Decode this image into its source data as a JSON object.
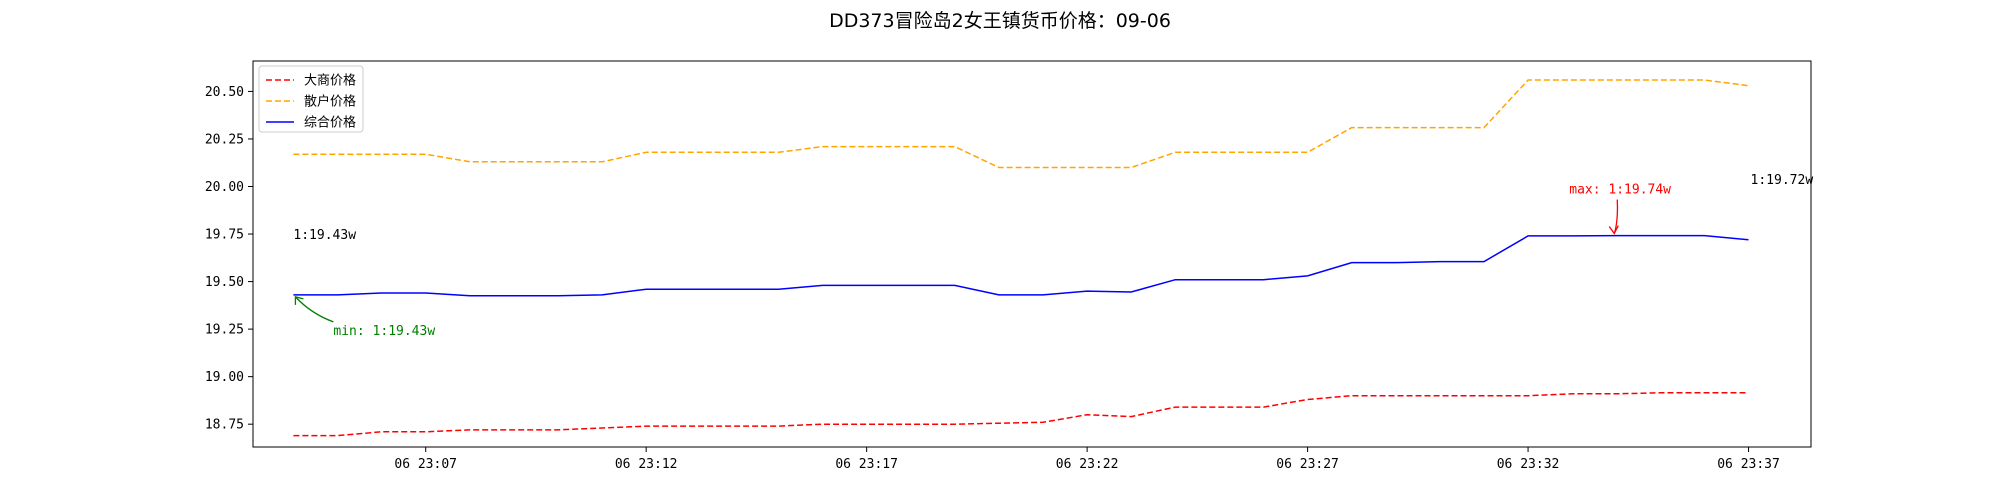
{
  "chart_data": {
    "type": "line",
    "title": "DD373冒险岛2女王镇货币价格：09-06",
    "xlabel": "",
    "ylabel": "",
    "x_ticks": [
      "06 23:07",
      "06 23:12",
      "06 23:17",
      "06 23:22",
      "06 23:27",
      "06 23:32",
      "06 23:37"
    ],
    "y_ticks": [
      "18.75",
      "19.00",
      "19.25",
      "19.50",
      "19.75",
      "20.00",
      "20.25",
      "20.50"
    ],
    "xlim": [
      "23:03:05",
      "23:38:25"
    ],
    "ylim": [
      18.63,
      20.66
    ],
    "grid": false,
    "legend_position": "upper left",
    "x": [
      "23:04",
      "23:05",
      "23:06",
      "23:07",
      "23:08",
      "23:09",
      "23:10",
      "23:11",
      "23:12",
      "23:13",
      "23:14",
      "23:15",
      "23:16",
      "23:17",
      "23:18",
      "23:19",
      "23:20",
      "23:21",
      "23:22",
      "23:23",
      "23:24",
      "23:25",
      "23:26",
      "23:27",
      "23:28",
      "23:29",
      "23:30",
      "23:31",
      "23:32",
      "23:33",
      "23:34",
      "23:35",
      "23:36",
      "23:37"
    ],
    "series": [
      {
        "name": "大商价格",
        "color": "#ff0000",
        "dash": "dashed",
        "values": [
          18.69,
          18.69,
          18.71,
          18.71,
          18.72,
          18.72,
          18.72,
          18.73,
          18.74,
          18.74,
          18.74,
          18.74,
          18.75,
          18.75,
          18.75,
          18.75,
          18.755,
          18.76,
          18.8,
          18.79,
          18.84,
          18.84,
          18.84,
          18.88,
          18.9,
          18.9,
          18.9,
          18.9,
          18.9,
          18.91,
          18.91,
          18.915,
          18.915,
          18.915
        ]
      },
      {
        "name": "散户价格",
        "color": "#ffa500",
        "dash": "dashed",
        "values": [
          20.17,
          20.17,
          20.17,
          20.17,
          20.13,
          20.13,
          20.13,
          20.13,
          20.18,
          20.18,
          20.18,
          20.18,
          20.21,
          20.21,
          20.21,
          20.21,
          20.1,
          20.1,
          20.1,
          20.1,
          20.18,
          20.18,
          20.18,
          20.18,
          20.31,
          20.31,
          20.31,
          20.31,
          20.56,
          20.56,
          20.56,
          20.56,
          20.56,
          20.53
        ]
      },
      {
        "name": "综合价格",
        "color": "#0000ff",
        "dash": "solid",
        "values": [
          19.43,
          19.43,
          19.44,
          19.44,
          19.425,
          19.425,
          19.425,
          19.43,
          19.46,
          19.46,
          19.46,
          19.46,
          19.48,
          19.48,
          19.48,
          19.48,
          19.43,
          19.43,
          19.45,
          19.445,
          19.51,
          19.51,
          19.51,
          19.53,
          19.6,
          19.6,
          19.605,
          19.605,
          19.74,
          19.74,
          19.742,
          19.742,
          19.742,
          19.72
        ]
      }
    ],
    "annotations": {
      "start_label": "1:19.43w",
      "end_label": "1:19.72w",
      "min_label": "min: 1:19.43w",
      "max_label": "max: 1:19.74w",
      "min_color": "#008000",
      "max_color": "#ff0000"
    }
  }
}
